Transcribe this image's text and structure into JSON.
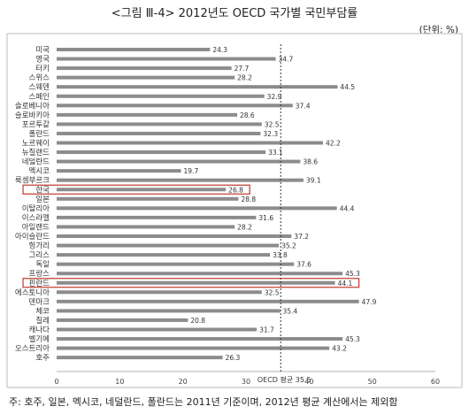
{
  "header": {
    "title": "<그림 Ⅲ-4> 2012년도 OECD 국가별 국민부담률",
    "unit": "(단위: %)"
  },
  "note": "주: 호주, 일본, 멕시코, 네덜란드, 폴란드는 2011년 기준이며, 2012년 평균 계산에서는 제외함",
  "chart_data": {
    "type": "bar",
    "orientation": "horizontal",
    "title": "",
    "xlabel": "",
    "ylabel": "",
    "xlim": [
      0,
      60
    ],
    "xticks": [
      0,
      10,
      20,
      30,
      40,
      50,
      60
    ],
    "grid": false,
    "legend": "none",
    "categories": [
      "미국",
      "영국",
      "터키",
      "스위스",
      "스웨덴",
      "스페인",
      "슬로베니아",
      "슬로바키아",
      "포르투갈",
      "폴란드",
      "노르웨이",
      "뉴질랜드",
      "네덜란드",
      "멕시코",
      "룩셈부르크",
      "한국",
      "일본",
      "이탈리아",
      "이스라엘",
      "아일랜드",
      "아이슬란드",
      "헝가리",
      "그리스",
      "독일",
      "프랑스",
      "핀란드",
      "에스토니아",
      "덴마크",
      "체코",
      "칠레",
      "캐나다",
      "벨기에",
      "오스트리아",
      "호주"
    ],
    "values": [
      24.3,
      34.7,
      27.7,
      28.2,
      44.5,
      32.9,
      37.4,
      28.6,
      32.5,
      32.3,
      42.2,
      33.1,
      38.6,
      19.7,
      39.1,
      26.8,
      28.8,
      44.4,
      31.6,
      28.2,
      37.2,
      35.2,
      33.8,
      37.6,
      45.3,
      44.1,
      32.5,
      47.9,
      35.4,
      20.8,
      31.7,
      45.3,
      43.2,
      26.3
    ],
    "highlighted": [
      "한국",
      "핀란드"
    ],
    "reference_line": {
      "label": "OECD 평균",
      "value": 35.5
    },
    "colors": {
      "bar": "#8c8c8c",
      "highlight_box": "#c0392b",
      "reference": "#333333"
    }
  }
}
